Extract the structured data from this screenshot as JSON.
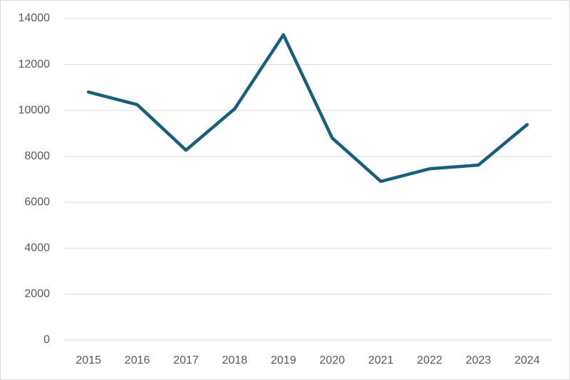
{
  "chart_data": {
    "type": "line",
    "categories": [
      "2015",
      "2016",
      "2017",
      "2018",
      "2019",
      "2020",
      "2021",
      "2022",
      "2023",
      "2024"
    ],
    "values": [
      10800,
      10250,
      8270,
      10070,
      13290,
      8800,
      6910,
      7460,
      7620,
      9380
    ],
    "color": "#1b5e7b",
    "ylim": [
      0,
      14000
    ],
    "yticks": [
      0,
      2000,
      4000,
      6000,
      8000,
      10000,
      12000,
      14000
    ],
    "grid": true
  }
}
